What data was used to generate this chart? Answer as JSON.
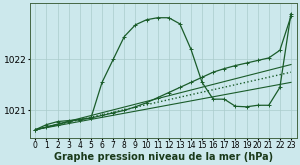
{
  "background_color": "#cce8ec",
  "grid_color": "#aacccc",
  "line_color": "#1a5c2a",
  "xlabel": "Graphe pression niveau de la mer (hPa)",
  "xlabel_fontsize": 7,
  "tick_fontsize": 5.5,
  "xlim": [
    -0.5,
    23.5
  ],
  "ylim": [
    1020.45,
    1023.1
  ],
  "yticks": [
    1021,
    1022
  ],
  "xticks": [
    0,
    1,
    2,
    3,
    4,
    5,
    6,
    7,
    8,
    9,
    10,
    11,
    12,
    13,
    14,
    15,
    16,
    17,
    18,
    19,
    20,
    21,
    22,
    23
  ],
  "series": [
    {
      "name": "straight_diagonal",
      "x": [
        0,
        23
      ],
      "y": [
        1020.62,
        1021.9
      ],
      "style": "solid",
      "marker": null,
      "linewidth": 0.8
    },
    {
      "name": "nearly_flat_bottom",
      "x": [
        0,
        23
      ],
      "y": [
        1020.62,
        1021.55
      ],
      "style": "solid",
      "marker": null,
      "linewidth": 0.8
    },
    {
      "name": "dotted_diagonal",
      "x": [
        0,
        23
      ],
      "y": [
        1020.62,
        1021.75
      ],
      "style": "dotted",
      "marker": null,
      "linewidth": 1.0
    },
    {
      "name": "peaked_line",
      "x": [
        0,
        1,
        2,
        3,
        4,
        5,
        6,
        7,
        8,
        9,
        10,
        11,
        12,
        13,
        14,
        15,
        16,
        17,
        18,
        19,
        20,
        21,
        22,
        23
      ],
      "y": [
        1020.62,
        1020.72,
        1020.78,
        1020.8,
        1020.82,
        1020.85,
        1021.55,
        1022.0,
        1022.45,
        1022.68,
        1022.78,
        1022.82,
        1022.82,
        1022.7,
        1022.2,
        1021.55,
        1021.22,
        1021.22,
        1021.08,
        1021.07,
        1021.1,
        1021.1,
        1021.45,
        1022.9
      ],
      "style": "solid",
      "marker": "+",
      "linewidth": 0.9
    },
    {
      "name": "diagonal_with_markers",
      "x": [
        0,
        1,
        2,
        3,
        4,
        5,
        6,
        7,
        8,
        9,
        10,
        11,
        12,
        13,
        14,
        15,
        16,
        17,
        18,
        19,
        20,
        21,
        22,
        23
      ],
      "y": [
        1020.62,
        1020.67,
        1020.72,
        1020.78,
        1020.82,
        1020.85,
        1020.9,
        1020.95,
        1021.0,
        1021.07,
        1021.15,
        1021.25,
        1021.35,
        1021.45,
        1021.55,
        1021.65,
        1021.75,
        1021.82,
        1021.88,
        1021.93,
        1021.98,
        1022.03,
        1022.18,
        1022.85
      ],
      "style": "solid",
      "marker": "+",
      "linewidth": 0.9
    }
  ]
}
